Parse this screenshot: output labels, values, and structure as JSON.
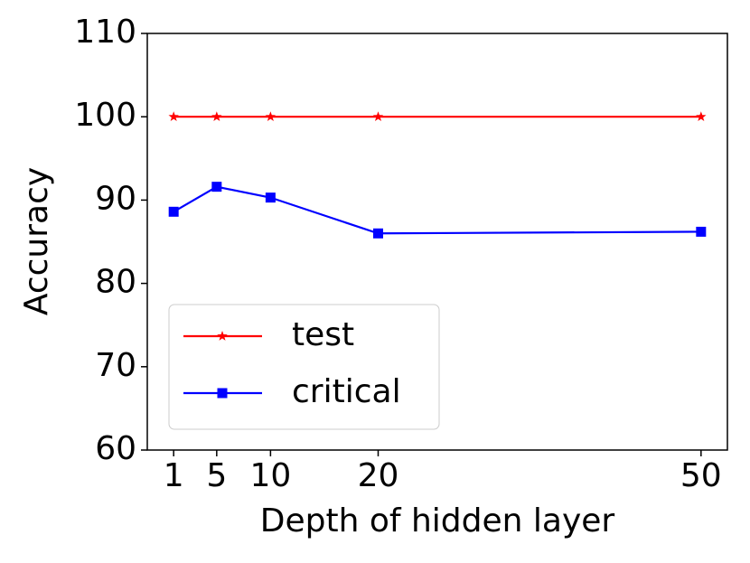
{
  "chart_data": {
    "type": "line",
    "x_label": "Depth of hidden layer",
    "y_label": "Accuracy",
    "x": [
      1,
      5,
      10,
      20,
      50
    ],
    "series": [
      {
        "name": "test",
        "color": "#ff0000",
        "marker": "star",
        "values": [
          100,
          100,
          100,
          100,
          100
        ]
      },
      {
        "name": "critical",
        "color": "#0000ff",
        "marker": "square",
        "values": [
          88.6,
          91.6,
          90.3,
          86.0,
          86.2
        ]
      }
    ],
    "xlim": [
      -1.45,
      52.45
    ],
    "xticks": [
      1,
      5,
      10,
      20,
      50
    ],
    "ylim": [
      60,
      110
    ],
    "yticks": [
      60,
      70,
      80,
      90,
      100,
      110
    ],
    "grid": false,
    "legend": "lower left"
  }
}
